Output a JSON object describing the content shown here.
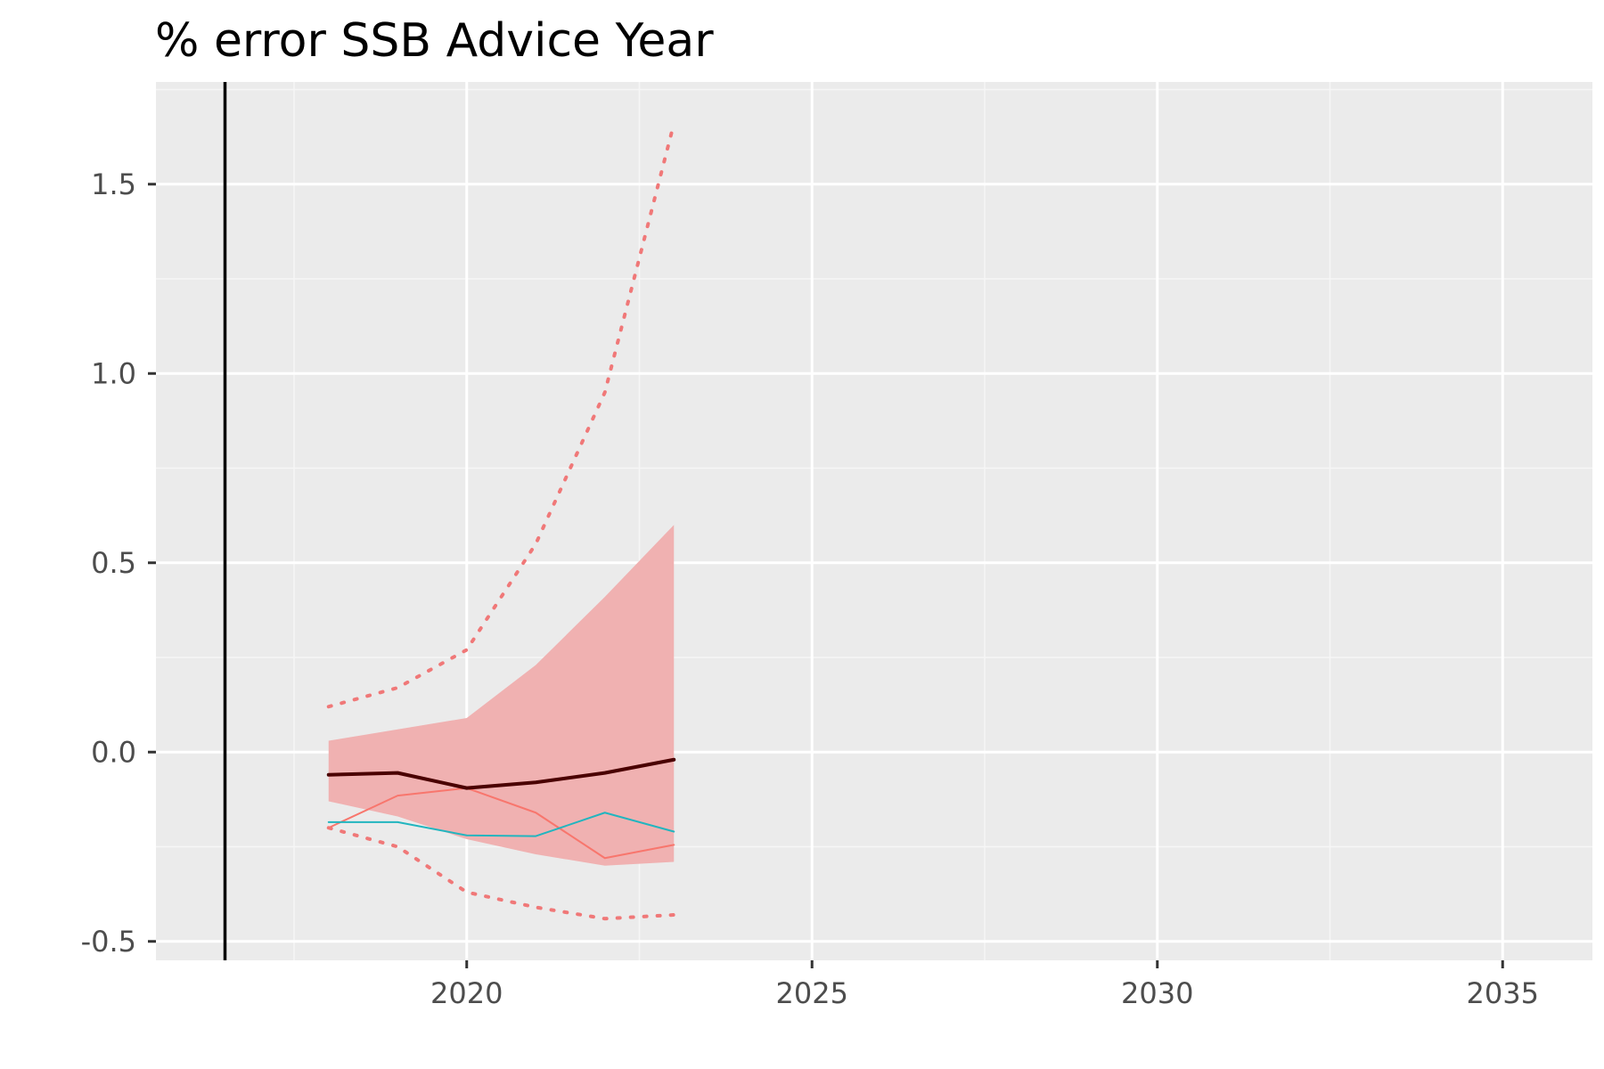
{
  "chart_data": {
    "type": "line",
    "title": "% error SSB Advice Year",
    "xlabel": "",
    "ylabel": "",
    "xlim": [
      2015.5,
      2036.3
    ],
    "ylim": [
      -0.55,
      1.77
    ],
    "x_ticks": [
      2020,
      2025,
      2030,
      2035
    ],
    "y_ticks": [
      -0.5,
      0.0,
      0.5,
      1.0,
      1.5
    ],
    "x_tick_labels": [
      "2020",
      "2025",
      "2030",
      "2035"
    ],
    "y_tick_labels": [
      "-0.5",
      "0.0",
      "0.5",
      "1.0",
      "1.5"
    ],
    "grid": true,
    "legend": "none",
    "reference_line_x": 2016.5,
    "x": [
      2018,
      2019,
      2020,
      2021,
      2022,
      2023
    ],
    "band": {
      "lower": [
        -0.13,
        -0.17,
        -0.23,
        -0.27,
        -0.3,
        -0.29
      ],
      "upper": [
        0.03,
        0.06,
        0.09,
        0.23,
        0.41,
        0.6
      ],
      "color": "#f0b1b1"
    },
    "dotted_band": {
      "lower": [
        -0.2,
        -0.25,
        -0.37,
        -0.41,
        -0.44,
        -0.43
      ],
      "upper": [
        0.12,
        0.17,
        0.27,
        0.55,
        0.95,
        1.66
      ],
      "color": "#f07878"
    },
    "series": [
      {
        "values": [
          -0.06,
          -0.055,
          -0.095,
          -0.08,
          -0.055,
          -0.02
        ],
        "color": "#4a0000",
        "width": 4
      },
      {
        "values": [
          -0.2,
          -0.115,
          -0.095,
          -0.16,
          -0.28,
          -0.245
        ],
        "color": "#f8766d",
        "width": 2
      },
      {
        "values": [
          -0.185,
          -0.185,
          -0.22,
          -0.222,
          -0.16,
          -0.21
        ],
        "color": "#22b5bf",
        "width": 2
      }
    ],
    "colors": {
      "panel": "#ebebeb",
      "grid_major": "#ffffff",
      "grid_minor": "#f6f6f6",
      "reference_line": "#000000"
    }
  }
}
